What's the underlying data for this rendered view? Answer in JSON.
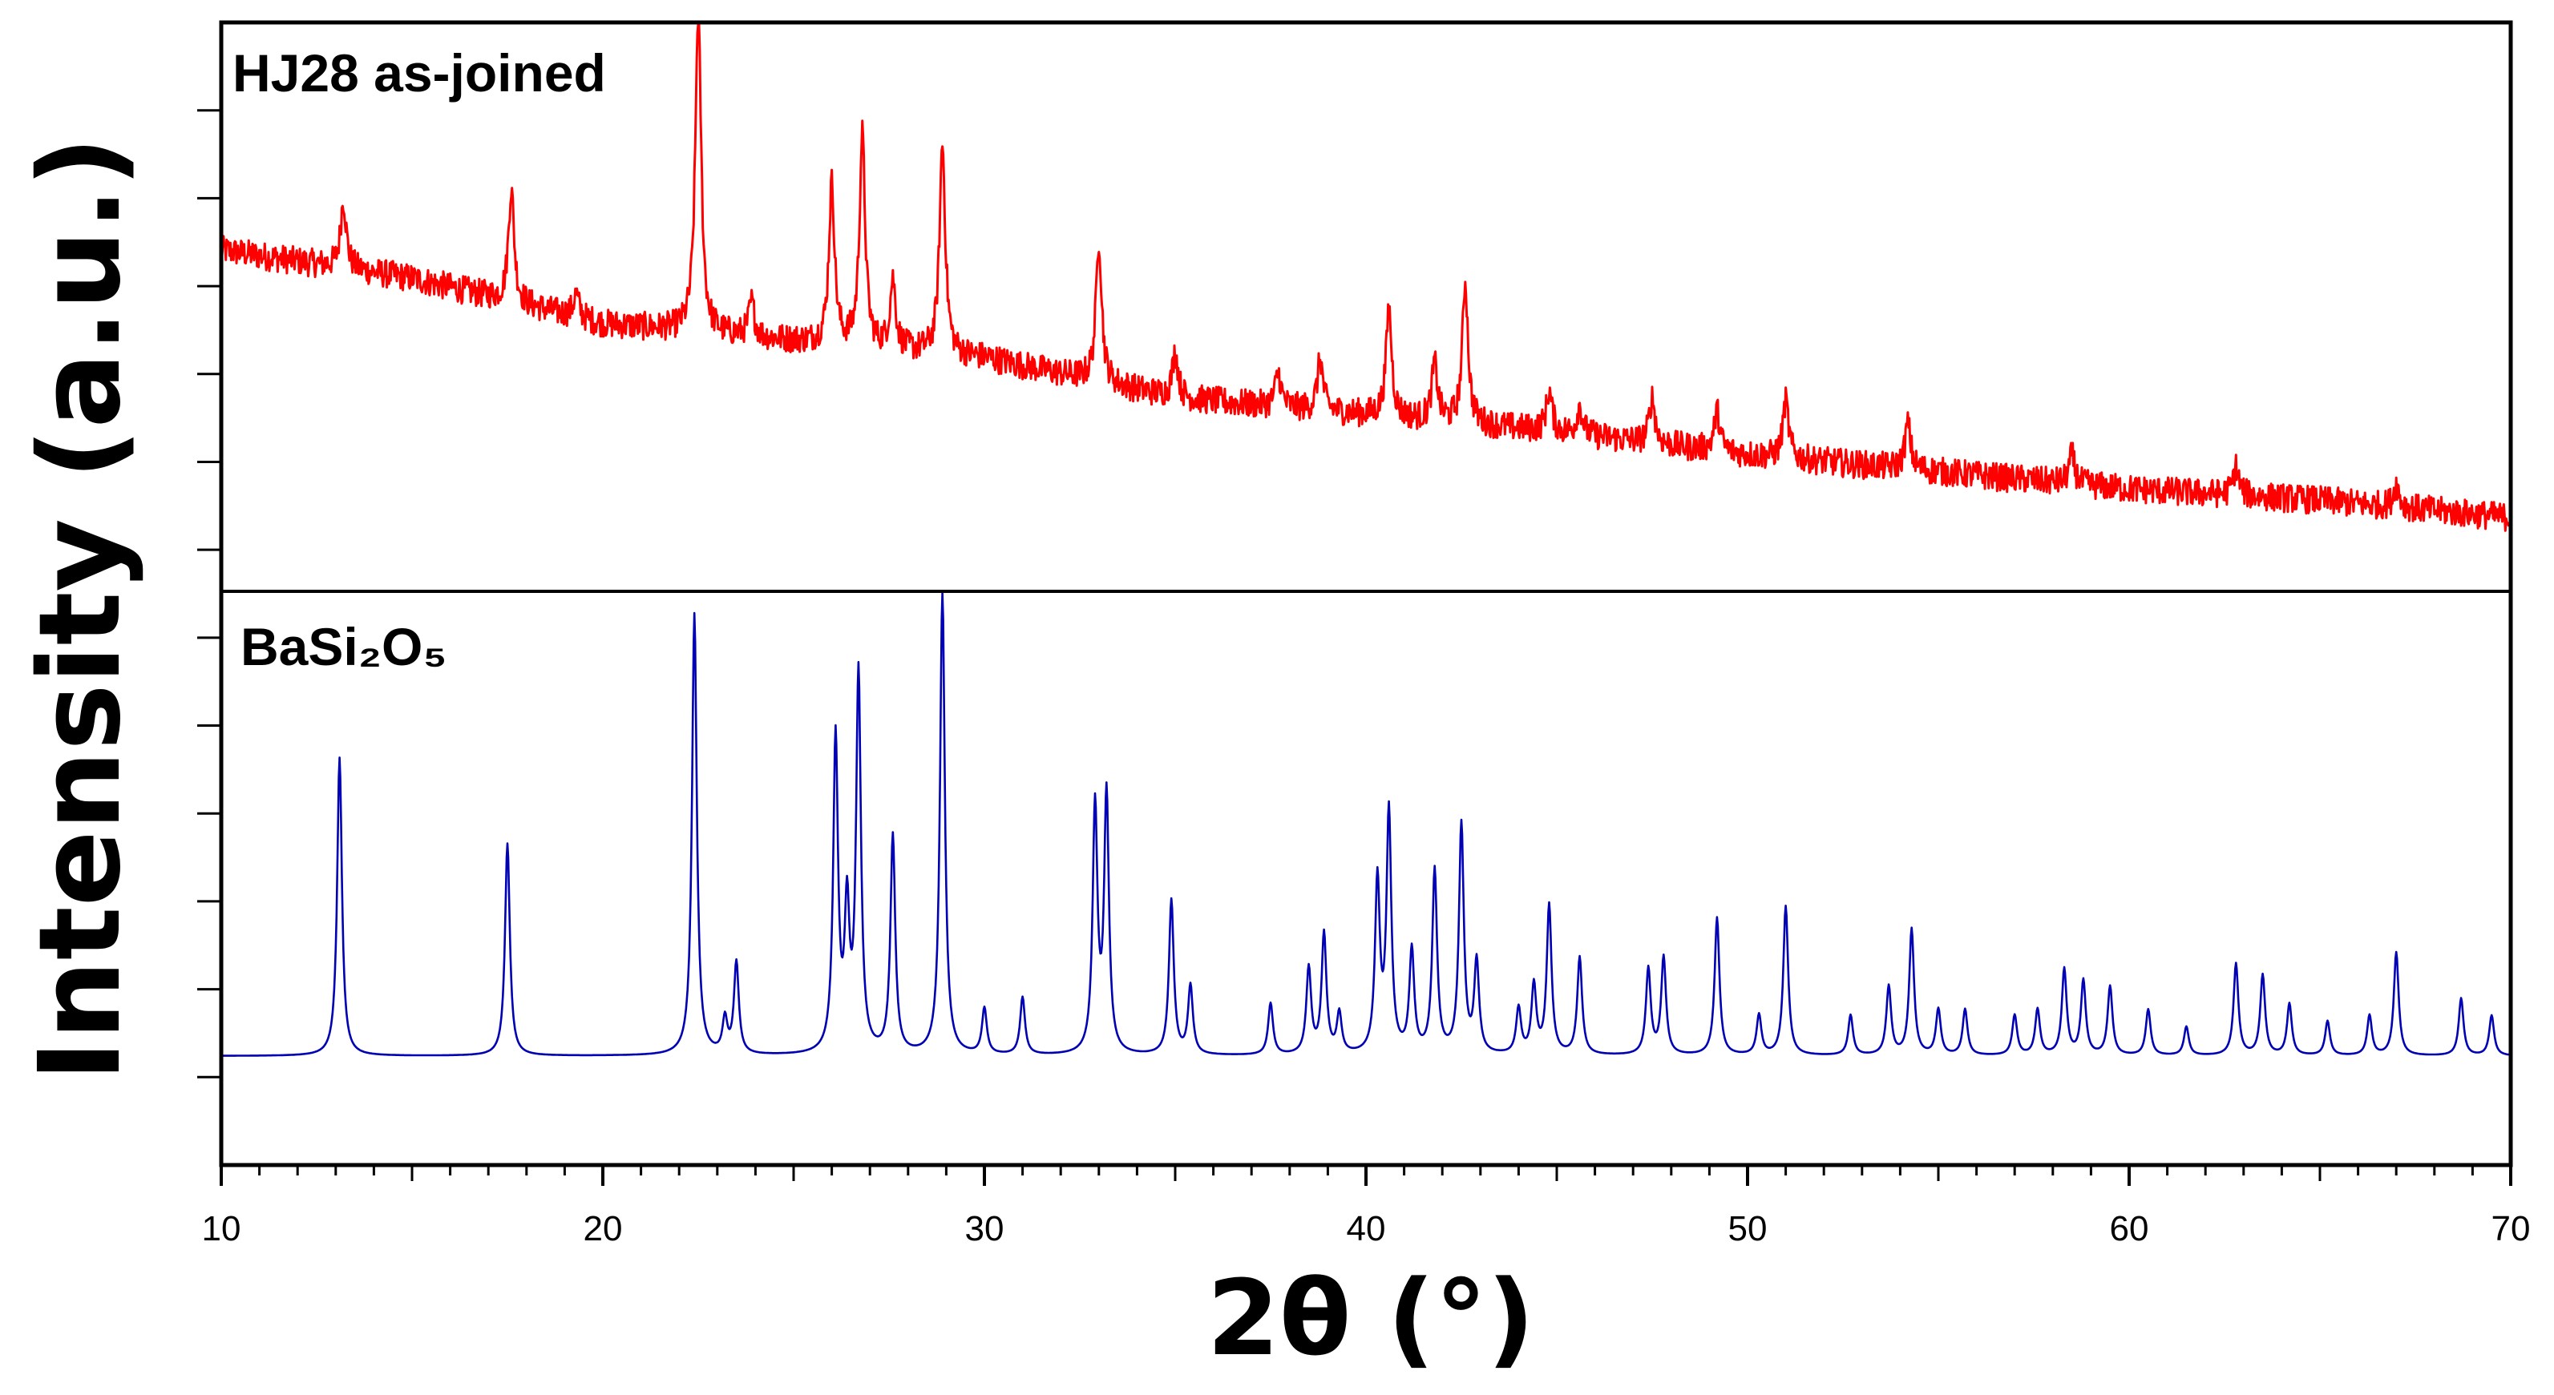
{
  "chart_data": {
    "type": "line",
    "title": "",
    "xlabel": "2θ (°)",
    "ylabel": "Intensity (a.u.)",
    "xlim": [
      10,
      70
    ],
    "x_ticks": [
      "10",
      "20",
      "30",
      "40",
      "50",
      "60",
      "70"
    ],
    "grid": false,
    "colors": {
      "asjoined": "#ff0000",
      "reference": "#0000b4",
      "axis": "#000000"
    },
    "panels": [
      {
        "name": "as-joined",
        "label": "HJ28 as-joined",
        "color": "#ff0000",
        "ylim": [
          0,
          100
        ],
        "baseline": [
          [
            10,
            60
          ],
          [
            15,
            55
          ],
          [
            20,
            47
          ],
          [
            25,
            44
          ],
          [
            30,
            41
          ],
          [
            35,
            34
          ],
          [
            40,
            31
          ],
          [
            45,
            28
          ],
          [
            50,
            24
          ],
          [
            55,
            21
          ],
          [
            60,
            18
          ],
          [
            65,
            16
          ],
          [
            70,
            13
          ]
        ],
        "peaks": [
          {
            "x": 13.2,
            "h": 12
          },
          {
            "x": 17.6,
            "h": 20
          },
          {
            "x": 19.3,
            "h": 4
          },
          {
            "x": 22.5,
            "h": 57
          },
          {
            "x": 23.9,
            "h": 6
          },
          {
            "x": 26.0,
            "h": 28
          },
          {
            "x": 26.8,
            "h": 37
          },
          {
            "x": 27.6,
            "h": 12
          },
          {
            "x": 28.9,
            "h": 37
          },
          {
            "x": 33.0,
            "h": 25
          },
          {
            "x": 35.0,
            "h": 8
          },
          {
            "x": 37.7,
            "h": 6
          },
          {
            "x": 38.8,
            "h": 9
          },
          {
            "x": 40.6,
            "h": 19
          },
          {
            "x": 41.8,
            "h": 10
          },
          {
            "x": 42.6,
            "h": 25
          },
          {
            "x": 44.8,
            "h": 7
          },
          {
            "x": 45.6,
            "h": 5
          },
          {
            "x": 47.5,
            "h": 8
          },
          {
            "x": 49.2,
            "h": 7
          },
          {
            "x": 51.0,
            "h": 10
          },
          {
            "x": 54.2,
            "h": 8
          },
          {
            "x": 58.5,
            "h": 5
          },
          {
            "x": 62.8,
            "h": 5
          },
          {
            "x": 67.0,
            "h": 4
          }
        ]
      },
      {
        "name": "reference",
        "label": "BaSi₂O₅",
        "color": "#0000b4",
        "ylim": [
          0,
          100
        ],
        "baseline_level": 19,
        "peaks": [
          {
            "x": 13.1,
            "h": 52
          },
          {
            "x": 17.5,
            "h": 37
          },
          {
            "x": 22.4,
            "h": 77
          },
          {
            "x": 23.2,
            "h": 6
          },
          {
            "x": 23.5,
            "h": 16
          },
          {
            "x": 26.1,
            "h": 55
          },
          {
            "x": 26.4,
            "h": 24
          },
          {
            "x": 26.7,
            "h": 66
          },
          {
            "x": 27.6,
            "h": 38
          },
          {
            "x": 28.9,
            "h": 81
          },
          {
            "x": 30.0,
            "h": 8
          },
          {
            "x": 31.0,
            "h": 10
          },
          {
            "x": 32.9,
            "h": 43
          },
          {
            "x": 33.2,
            "h": 45
          },
          {
            "x": 34.9,
            "h": 27
          },
          {
            "x": 35.4,
            "h": 12
          },
          {
            "x": 37.5,
            "h": 9
          },
          {
            "x": 38.5,
            "h": 15
          },
          {
            "x": 38.9,
            "h": 21
          },
          {
            "x": 39.3,
            "h": 7
          },
          {
            "x": 40.3,
            "h": 30
          },
          {
            "x": 40.6,
            "h": 42
          },
          {
            "x": 41.2,
            "h": 18
          },
          {
            "x": 41.8,
            "h": 32
          },
          {
            "x": 42.5,
            "h": 40
          },
          {
            "x": 42.9,
            "h": 16
          },
          {
            "x": 44.0,
            "h": 8
          },
          {
            "x": 44.4,
            "h": 12
          },
          {
            "x": 44.8,
            "h": 26
          },
          {
            "x": 45.6,
            "h": 17
          },
          {
            "x": 47.4,
            "h": 15
          },
          {
            "x": 47.8,
            "h": 17
          },
          {
            "x": 49.2,
            "h": 24
          },
          {
            "x": 50.3,
            "h": 7
          },
          {
            "x": 51.0,
            "h": 26
          },
          {
            "x": 52.7,
            "h": 7
          },
          {
            "x": 53.7,
            "h": 12
          },
          {
            "x": 54.3,
            "h": 22
          },
          {
            "x": 55.0,
            "h": 8
          },
          {
            "x": 55.7,
            "h": 8
          },
          {
            "x": 57.0,
            "h": 7
          },
          {
            "x": 57.6,
            "h": 8
          },
          {
            "x": 58.3,
            "h": 15
          },
          {
            "x": 58.8,
            "h": 13
          },
          {
            "x": 59.5,
            "h": 12
          },
          {
            "x": 60.5,
            "h": 8
          },
          {
            "x": 61.5,
            "h": 5
          },
          {
            "x": 62.8,
            "h": 16
          },
          {
            "x": 63.5,
            "h": 14
          },
          {
            "x": 64.2,
            "h": 9
          },
          {
            "x": 65.2,
            "h": 6
          },
          {
            "x": 66.3,
            "h": 7
          },
          {
            "x": 67.0,
            "h": 18
          },
          {
            "x": 68.7,
            "h": 10
          },
          {
            "x": 69.5,
            "h": 7
          }
        ]
      }
    ]
  }
}
